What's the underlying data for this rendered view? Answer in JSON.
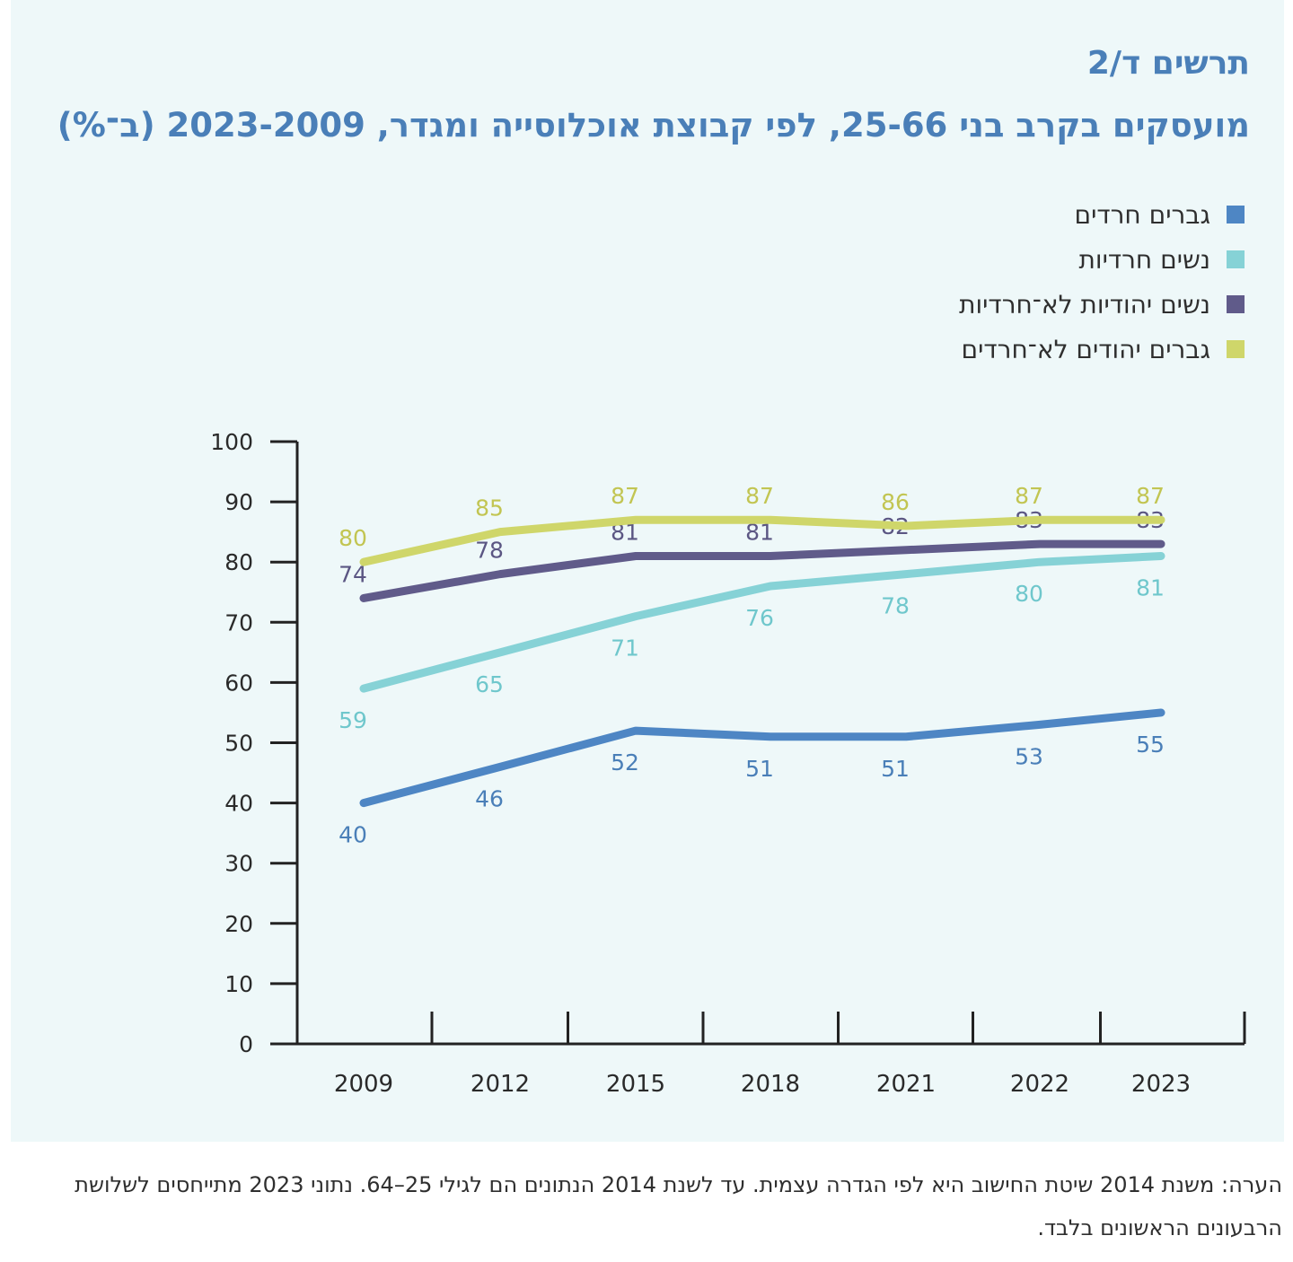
{
  "header": {
    "figure_label": "תרשים ד/2",
    "title": "מועסקים בקרב בני 25-66, לפי קבוצת אוכלוסייה ומגדר, 2023-2009 (ב־%)"
  },
  "legend": [
    {
      "label": "גברים חרדים",
      "color": "#4e86c4"
    },
    {
      "label": "נשים חרדיות",
      "color": "#86d2d6"
    },
    {
      "label": "נשים יהודיות לא־חרדיות",
      "color": "#605b8a"
    },
    {
      "label": "גברים יהודים לא־חרדים",
      "color": "#cfd66a"
    }
  ],
  "chart_data": {
    "type": "line",
    "x": [
      "2009",
      "2012",
      "2015",
      "2018",
      "2021",
      "2022",
      "2023"
    ],
    "ylim": [
      0,
      100
    ],
    "yticks": [
      0,
      10,
      20,
      30,
      40,
      50,
      60,
      70,
      80,
      90,
      100
    ],
    "grid": false,
    "series": [
      {
        "name": "גברים חרדים",
        "color": "#4e86c4",
        "label_color": "#4a7fb8",
        "label_position": "below",
        "values": [
          40,
          46,
          52,
          51,
          51,
          53,
          55
        ]
      },
      {
        "name": "נשים חרדיות",
        "color": "#86d2d6",
        "label_color": "#6fc7cc",
        "label_position": "below",
        "values": [
          59,
          65,
          71,
          76,
          78,
          80,
          81
        ]
      },
      {
        "name": "נשים יהודיות לא־חרדיות",
        "color": "#605b8a",
        "label_color": "#5b5683",
        "label_position": "above",
        "values": [
          74,
          78,
          81,
          81,
          82,
          83,
          83
        ]
      },
      {
        "name": "גברים יהודים לא־חרדים",
        "color": "#cfd66a",
        "label_color": "#c2c552",
        "label_position": "above",
        "values": [
          80,
          85,
          87,
          87,
          86,
          87,
          87
        ]
      }
    ]
  },
  "note": "הערה: משנת 2014 שיטת החישוב היא לפי הגדרה עצמית. עד לשנת 2014 הנתונים הם לגילי 25–64. נתוני 2023 מתייחסים לשלושת הרבעונים הראשונים בלבד."
}
